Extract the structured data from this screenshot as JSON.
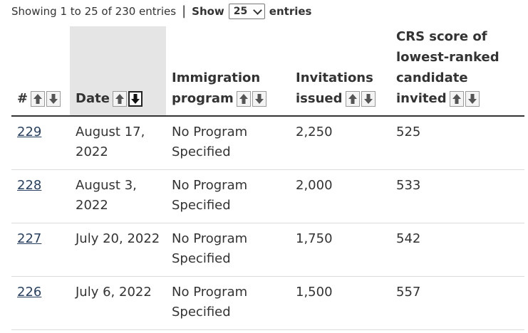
{
  "summary": {
    "showing_text": "Showing 1 to 25 of 230 entries",
    "separator": "|",
    "show_label": "Show",
    "page_size_value": "25",
    "entries_label": "entries"
  },
  "table": {
    "columns": [
      {
        "line1": "",
        "line2": "",
        "line3": "",
        "line4": "#"
      },
      {
        "line1": "",
        "line2": "",
        "line3": "",
        "line4": "Date"
      },
      {
        "line1": "",
        "line2": "",
        "line3": "Immigration",
        "line4": "program"
      },
      {
        "line1": "",
        "line2": "",
        "line3": "Invitations",
        "line4": "issued"
      },
      {
        "line1": "CRS score of",
        "line2": "lowest-ranked",
        "line3": "candidate",
        "line4": "invited"
      }
    ],
    "rows": [
      {
        "num": "229",
        "date1": "August 17,",
        "date2": "2022",
        "prog1": "No Program",
        "prog2": "Specified",
        "invites": "2,250",
        "crs": "525"
      },
      {
        "num": "228",
        "date1": "August 3,",
        "date2": "2022",
        "prog1": "No Program",
        "prog2": "Specified",
        "invites": "2,000",
        "crs": "533"
      },
      {
        "num": "227",
        "date1": "July 20, 2022",
        "date2": "",
        "prog1": "No Program",
        "prog2": "Specified",
        "invites": "1,750",
        "crs": "542"
      },
      {
        "num": "226",
        "date1": "July 6, 2022",
        "date2": "",
        "prog1": "No Program",
        "prog2": "Specified",
        "invites": "1,500",
        "crs": "557"
      }
    ]
  },
  "icons": {
    "sort_up": "arrow-up-icon",
    "sort_down": "arrow-down-icon",
    "dropdown": "chevron-down-icon"
  },
  "colors": {
    "link": "#284162",
    "active_header_bg": "#e5e5e5",
    "text": "#333333"
  }
}
